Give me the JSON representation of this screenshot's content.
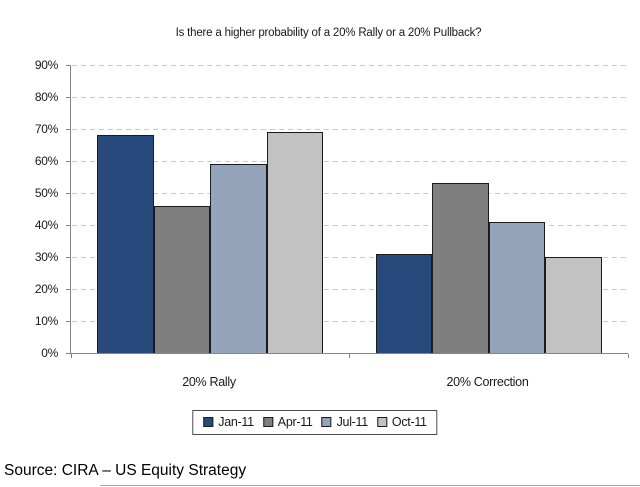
{
  "chart_data": {
    "type": "bar",
    "title": "Is there a higher probability of a 20% Rally or a 20% Pullback?",
    "categories": [
      "20% Rally",
      "20% Correction"
    ],
    "series": [
      {
        "name": "Jan-11",
        "color": "#27497B",
        "values": [
          68,
          31
        ]
      },
      {
        "name": "Apr-11",
        "color": "#7F7F7F",
        "values": [
          46,
          53
        ]
      },
      {
        "name": "Jul-11",
        "color": "#94A4BA",
        "values": [
          59,
          41
        ]
      },
      {
        "name": "Oct-11",
        "color": "#C2C2C2",
        "values": [
          69,
          30
        ]
      }
    ],
    "ylim": [
      0,
      90
    ],
    "yticks": [
      {
        "value": 0,
        "label": "0%"
      },
      {
        "value": 10,
        "label": "10%"
      },
      {
        "value": 20,
        "label": "20%"
      },
      {
        "value": 30,
        "label": "30%"
      },
      {
        "value": 40,
        "label": "40%"
      },
      {
        "value": 50,
        "label": "50%"
      },
      {
        "value": 60,
        "label": "60%"
      },
      {
        "value": 70,
        "label": "70%"
      },
      {
        "value": 80,
        "label": "80%"
      },
      {
        "value": 90,
        "label": "90%"
      }
    ],
    "grid": "horizontal-dashed",
    "legend_position": "bottom",
    "bar_border_color": "#1c1c1c",
    "axis_color": "#848484",
    "gridline_color": "#c9c9c9"
  },
  "source_text": "Source: CIRA – US Equity Strategy"
}
